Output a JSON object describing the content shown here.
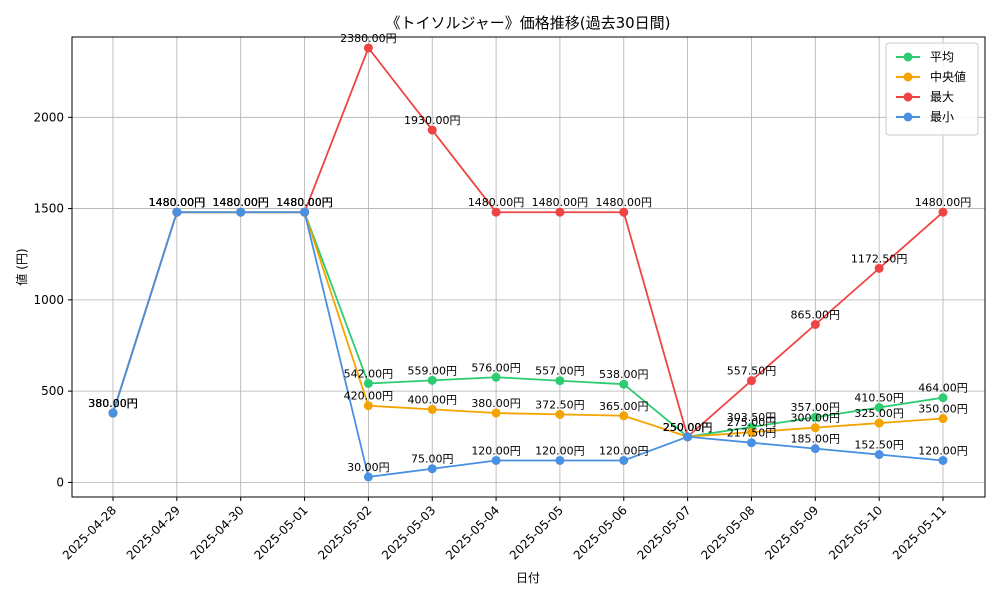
{
  "chart_data": {
    "type": "line",
    "title": "《トイソルジャー》価格推移(過去30日間)",
    "xlabel": "日付",
    "ylabel": "値 (円)",
    "x": [
      "2025-04-28",
      "2025-04-29",
      "2025-04-30",
      "2025-05-01",
      "2025-05-02",
      "2025-05-03",
      "2025-05-04",
      "2025-05-05",
      "2025-05-06",
      "2025-05-07",
      "2025-05-08",
      "2025-05-09",
      "2025-05-10",
      "2025-05-11"
    ],
    "yticks": [
      0,
      500,
      1000,
      1500,
      2000
    ],
    "ylim": [
      -80,
      2440
    ],
    "grid": true,
    "legend_position": "top-right",
    "series": [
      {
        "name": "平均",
        "color": "#2ecc71",
        "values": [
          380,
          1480,
          1480,
          1480,
          542,
          559,
          576,
          557,
          538,
          250,
          303.5,
          357,
          410.5,
          464
        ],
        "labels": [
          "380.00円",
          "1480.00円",
          "1480.00円",
          "1480.00円",
          "542.00円",
          "559.00円",
          "576.00円",
          "557.00円",
          "538.00円",
          "250.00円",
          "303.50円",
          "357.00円",
          "410.50円",
          "464.00円"
        ]
      },
      {
        "name": "中央値",
        "color": "#f5a300",
        "values": [
          380,
          1480,
          1480,
          1480,
          420,
          400,
          380,
          372.5,
          365,
          250,
          275,
          300,
          325,
          350
        ],
        "labels": [
          "380.00円",
          "1480.00円",
          "1480.00円",
          "1480.00円",
          "420.00円",
          "400.00円",
          "380.00円",
          "372.50円",
          "365.00円",
          "250.00円",
          "275.00円",
          "300.00円",
          "325.00円",
          "350.00円"
        ]
      },
      {
        "name": "最大",
        "color": "#ef4444",
        "values": [
          380,
          1480,
          1480,
          1480,
          2380,
          1930,
          1480,
          1480,
          1480,
          250,
          557.5,
          865,
          1172.5,
          1480
        ],
        "labels": [
          "380.00円",
          "1480.00円",
          "1480.00円",
          "1480.00円",
          "2380.00円",
          "1930.00円",
          "1480.00円",
          "1480.00円",
          "1480.00円",
          "250.00円",
          "557.50円",
          "865.00円",
          "1172.50円",
          "1480.00円"
        ]
      },
      {
        "name": "最小",
        "color": "#4a90e2",
        "values": [
          380,
          1480,
          1480,
          1480,
          30,
          75,
          120,
          120,
          120,
          250,
          217.5,
          185,
          152.5,
          120
        ],
        "labels": [
          "380.00円",
          "1480.00円",
          "1480.00円",
          "1480.00円",
          "30.00円",
          "75.00円",
          "120.00円",
          "120.00円",
          "120.00円",
          "250.00円",
          "217.50円",
          "185.00円",
          "152.50円",
          "120.00円"
        ]
      }
    ]
  }
}
